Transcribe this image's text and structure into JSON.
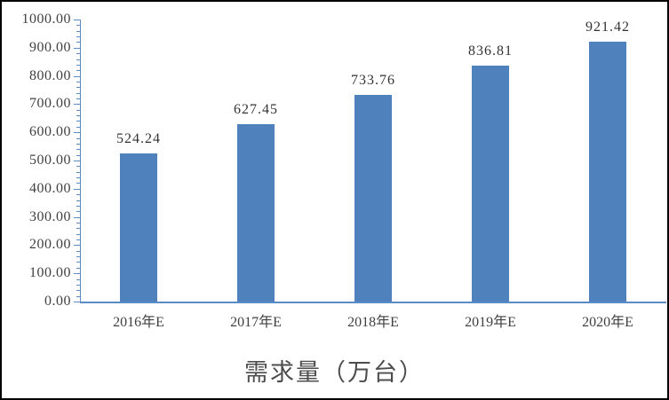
{
  "chart_data": {
    "type": "bar",
    "title": "需求量（万台）",
    "categories": [
      "2016年E",
      "2017年E",
      "2018年E",
      "2019年E",
      "2020年E"
    ],
    "values": [
      524.24,
      627.45,
      733.76,
      836.81,
      921.42
    ],
    "data_labels": [
      "524.24",
      "627.45",
      "733.76",
      "836.81",
      "921.42"
    ],
    "xlabel": "",
    "ylabel": "",
    "ylim": [
      0,
      1000
    ],
    "y_major_step": 100,
    "y_minor_step": 20,
    "y_tick_labels": [
      "1000.00",
      "900.00",
      "800.00",
      "700.00",
      "600.00",
      "500.00",
      "400.00",
      "300.00",
      "200.00",
      "100.00",
      "0.00"
    ],
    "grid": false,
    "legend": "none",
    "colors": {
      "bar": "#4F81BD",
      "axis": "#5B8BC4",
      "tick_label_text": "#404040",
      "data_label_text": "#333333",
      "title_text": "#4d4d4d",
      "background": "#ffffff",
      "border": "#000000"
    }
  }
}
